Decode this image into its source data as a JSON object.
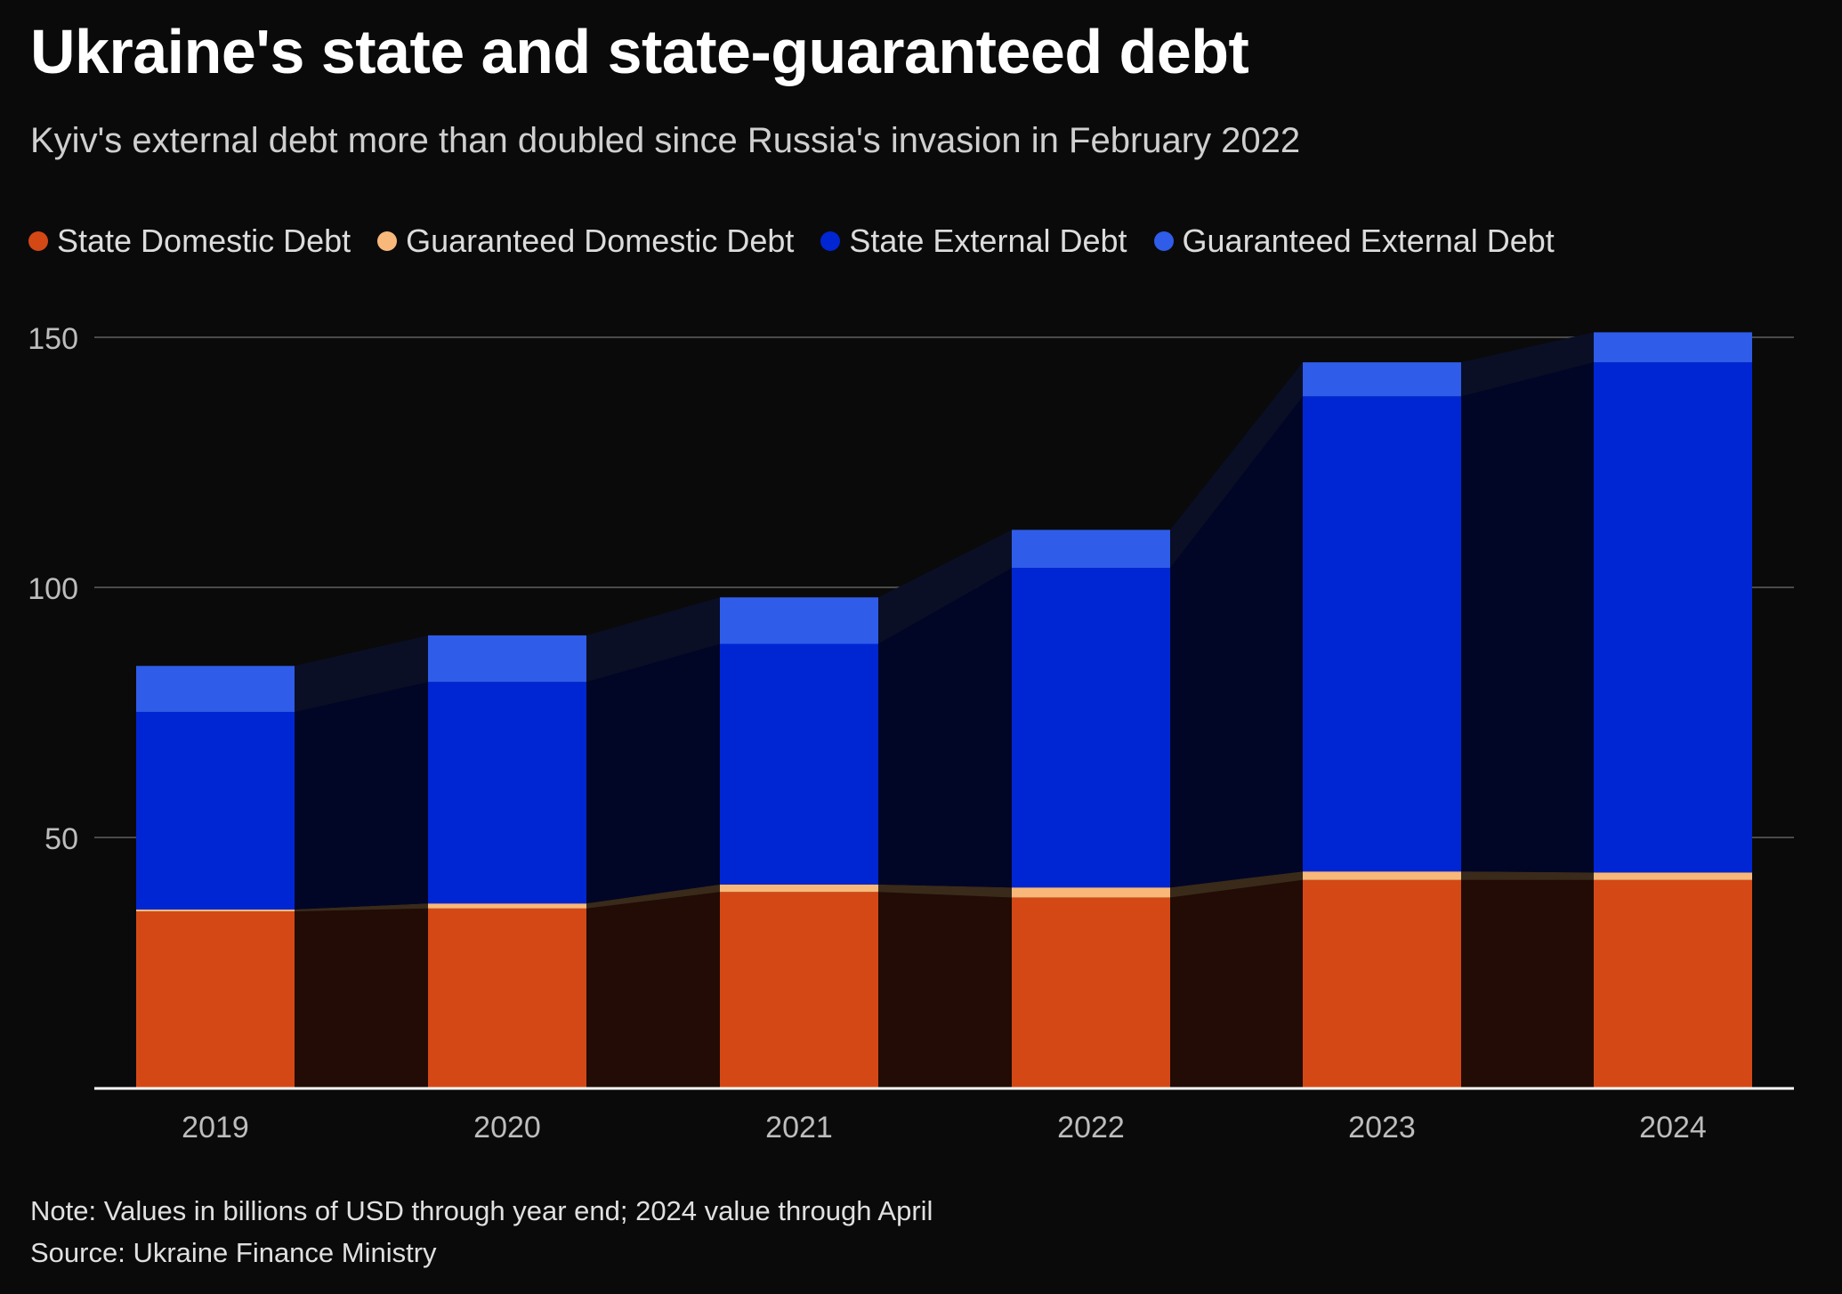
{
  "title": "Ukraine's state and state-guaranteed debt",
  "subtitle": "Kyiv's external debt more than doubled since Russia's invasion in February 2022",
  "note": "Note: Values in billions of USD through year end; 2024 value through April",
  "source": "Source: Ukraine Finance Ministry",
  "chart_data": {
    "type": "bar",
    "stacked": true,
    "categories": [
      "2019",
      "2020",
      "2021",
      "2022",
      "2023",
      "2024"
    ],
    "series": [
      {
        "name": "State Domestic Debt",
        "color": "#d44816",
        "values": [
          35.2,
          35.8,
          39.1,
          38.0,
          41.5,
          41.5
        ]
      },
      {
        "name": "Guaranteed Domestic Debt",
        "color": "#f7b87a",
        "values": [
          0.4,
          1.0,
          1.5,
          2.0,
          1.7,
          1.5
        ]
      },
      {
        "name": "State External Debt",
        "color": "#0026d4",
        "values": [
          39.5,
          44.3,
          48.1,
          63.9,
          95.0,
          102.0
        ]
      },
      {
        "name": "Guaranteed External Debt",
        "color": "#2f5ce9",
        "values": [
          9.2,
          9.3,
          9.3,
          7.6,
          6.8,
          6.0
        ]
      }
    ],
    "ylim": [
      0,
      150
    ],
    "yticks": [
      50,
      100,
      150
    ],
    "xlabel": "",
    "ylabel": "",
    "grid": true,
    "legend_position": "top-left"
  }
}
